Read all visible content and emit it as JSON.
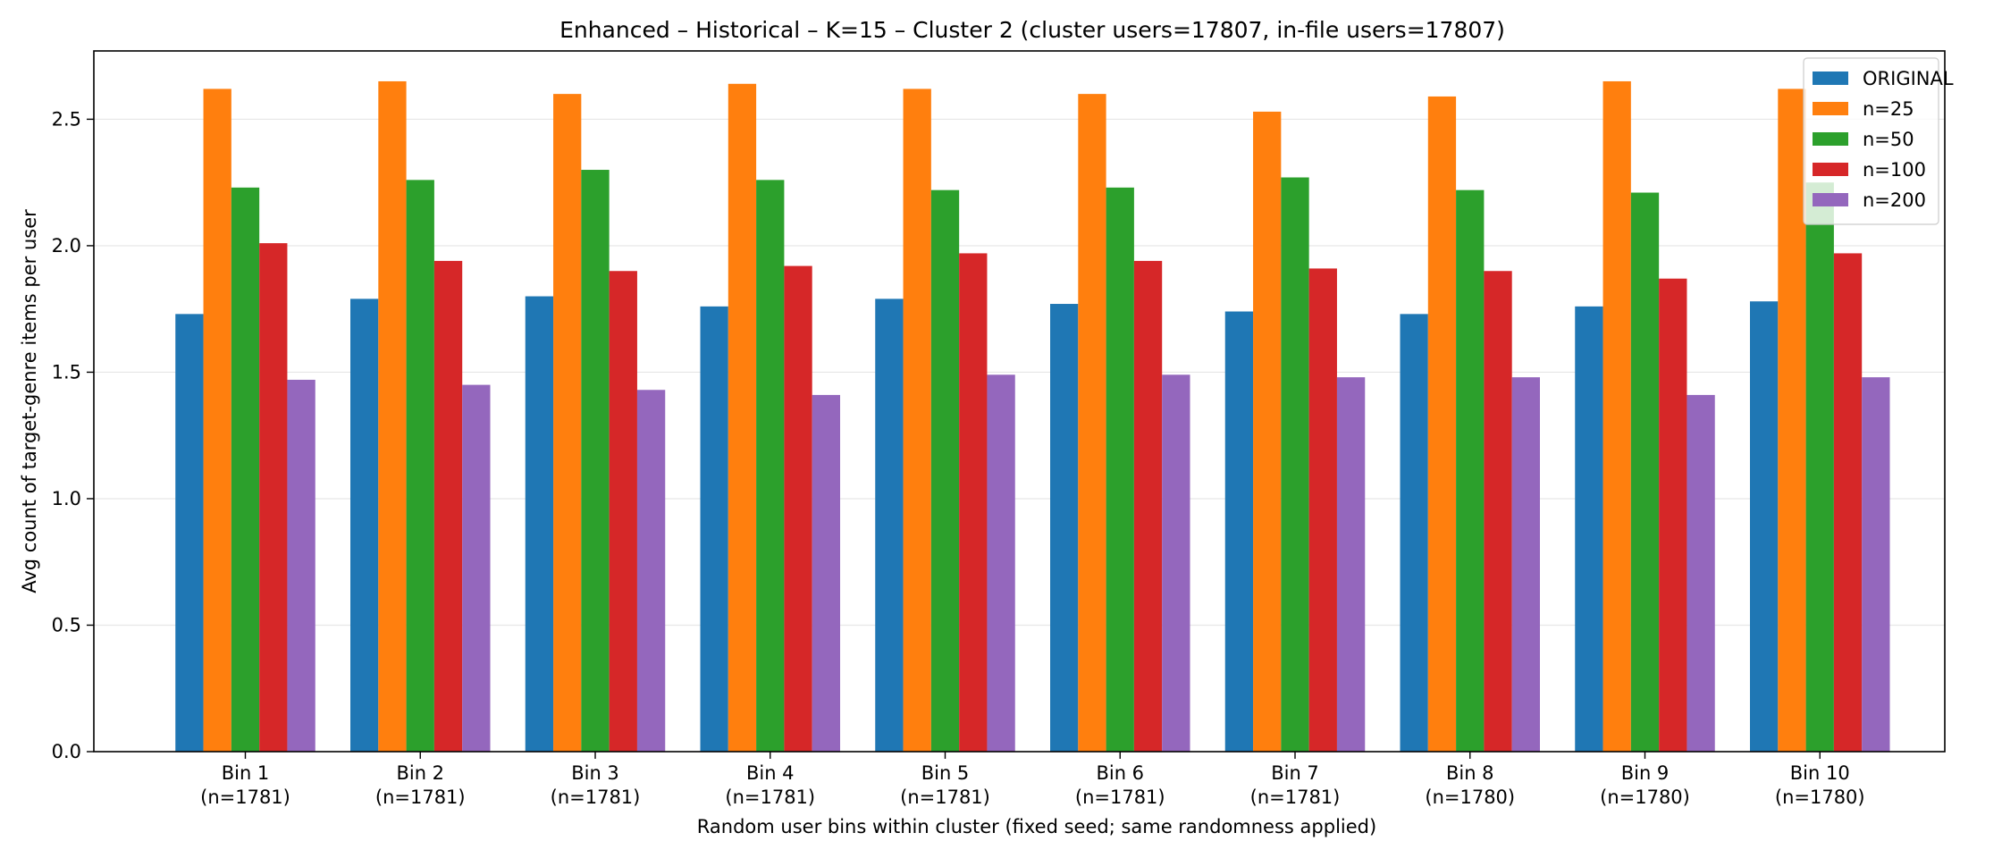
{
  "chart_data": {
    "type": "bar",
    "title": "Enhanced – Historical – K=15 – Cluster 2 (cluster users=17807, in-file users=17807)",
    "xlabel": "Random user bins within cluster (fixed seed; same randomness applied)",
    "ylabel": "Avg count of target-genre items per user",
    "ylim": [
      0,
      2.77
    ],
    "yticks": [
      "0.0",
      "0.5",
      "1.0",
      "1.5",
      "2.0",
      "2.5"
    ],
    "grid": "horizontal",
    "legend_position": "top-right",
    "categories": [
      {
        "name": "Bin 1",
        "count": "(n=1781)"
      },
      {
        "name": "Bin 2",
        "count": "(n=1781)"
      },
      {
        "name": "Bin 3",
        "count": "(n=1781)"
      },
      {
        "name": "Bin 4",
        "count": "(n=1781)"
      },
      {
        "name": "Bin 5",
        "count": "(n=1781)"
      },
      {
        "name": "Bin 6",
        "count": "(n=1781)"
      },
      {
        "name": "Bin 7",
        "count": "(n=1781)"
      },
      {
        "name": "Bin 8",
        "count": "(n=1780)"
      },
      {
        "name": "Bin 9",
        "count": "(n=1780)"
      },
      {
        "name": "Bin 10",
        "count": "(n=1780)"
      }
    ],
    "series": [
      {
        "name": "ORIGINAL",
        "color": "#1f77b4",
        "values": [
          1.73,
          1.79,
          1.8,
          1.76,
          1.79,
          1.77,
          1.74,
          1.73,
          1.76,
          1.78
        ]
      },
      {
        "name": "n=25",
        "color": "#ff7f0e",
        "values": [
          2.62,
          2.65,
          2.6,
          2.64,
          2.62,
          2.6,
          2.53,
          2.59,
          2.65,
          2.62
        ]
      },
      {
        "name": "n=50",
        "color": "#2ca02c",
        "values": [
          2.23,
          2.26,
          2.3,
          2.26,
          2.22,
          2.23,
          2.27,
          2.22,
          2.21,
          2.25
        ]
      },
      {
        "name": "n=100",
        "color": "#d62728",
        "values": [
          2.01,
          1.94,
          1.9,
          1.92,
          1.97,
          1.94,
          1.91,
          1.9,
          1.87,
          1.97
        ]
      },
      {
        "name": "n=200",
        "color": "#9467bd",
        "values": [
          1.47,
          1.45,
          1.43,
          1.41,
          1.49,
          1.49,
          1.48,
          1.48,
          1.41,
          1.48
        ]
      }
    ]
  }
}
